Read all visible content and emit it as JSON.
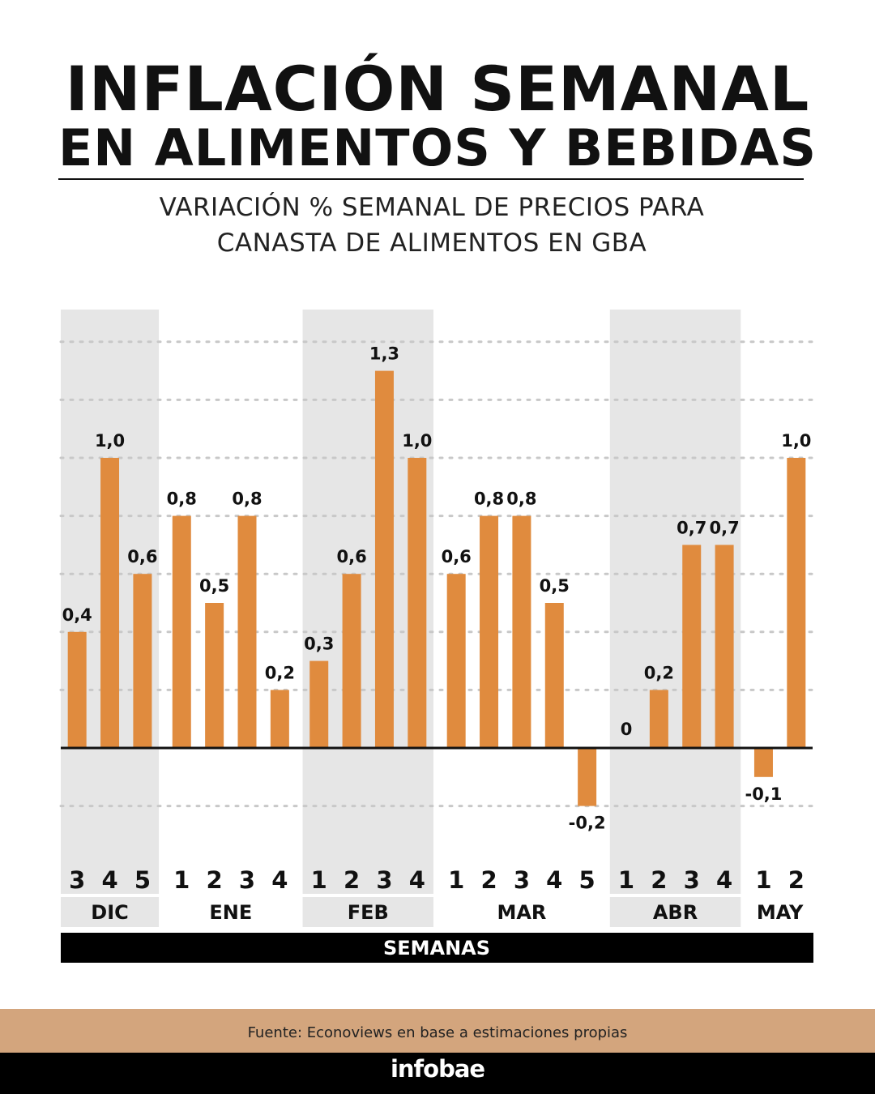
{
  "header": {
    "title_line1": "INFLACIÓN SEMANAL",
    "title_line2": "EN ALIMENTOS Y BEBIDAS",
    "subtitle_line1": "VARIACIÓN % SEMANAL DE PRECIOS PARA",
    "subtitle_line2": "CANASTA DE ALIMENTOS EN GBA"
  },
  "chart_data": {
    "type": "bar",
    "categories": [
      "3",
      "4",
      "5",
      "1",
      "2",
      "3",
      "4",
      "1",
      "2",
      "3",
      "4",
      "1",
      "2",
      "3",
      "4",
      "5",
      "1",
      "2",
      "3",
      "4",
      "1",
      "2"
    ],
    "month_of_category": [
      "DIC",
      "DIC",
      "DIC",
      "ENE",
      "ENE",
      "ENE",
      "ENE",
      "FEB",
      "FEB",
      "FEB",
      "FEB",
      "MAR",
      "MAR",
      "MAR",
      "MAR",
      "MAR",
      "ABR",
      "ABR",
      "ABR",
      "ABR",
      "MAY",
      "MAY"
    ],
    "values": [
      0.4,
      1.0,
      0.6,
      0.8,
      0.5,
      0.8,
      0.2,
      0.3,
      0.6,
      1.3,
      1.0,
      0.6,
      0.8,
      0.8,
      0.5,
      -0.2,
      0,
      0.2,
      0.7,
      0.7,
      -0.1,
      1.0
    ],
    "value_labels": [
      "0,4",
      "1,0",
      "0,6",
      "0,8",
      "0,5",
      "0,8",
      "0,2",
      "0,3",
      "0,6",
      "1,3",
      "1,0",
      "0,6",
      "0,8",
      "0,8",
      "0,5",
      "-0,2",
      "0",
      "0,2",
      "0,7",
      "0,7",
      "-0,1",
      "1,0"
    ],
    "months": [
      {
        "label": "DIC",
        "count": 3,
        "shaded": true
      },
      {
        "label": "ENE",
        "count": 4,
        "shaded": false
      },
      {
        "label": "FEB",
        "count": 4,
        "shaded": true
      },
      {
        "label": "MAR",
        "count": 5,
        "shaded": false
      },
      {
        "label": "ABR",
        "count": 4,
        "shaded": true
      },
      {
        "label": "MAY",
        "count": 2,
        "shaded": false
      }
    ],
    "xlabel": "SEMANAS",
    "ylabel": "",
    "ylim": [
      -0.2,
      1.4
    ],
    "grid": true,
    "colors": {
      "bar": "#e08b3e",
      "shade": "#e6e6e6",
      "grid": "#c8c8c8",
      "axis": "#111111",
      "text": "#111111"
    }
  },
  "footer": {
    "source": "Fuente: Econoviews en base a estimaciones propias",
    "brand": "infobae"
  }
}
